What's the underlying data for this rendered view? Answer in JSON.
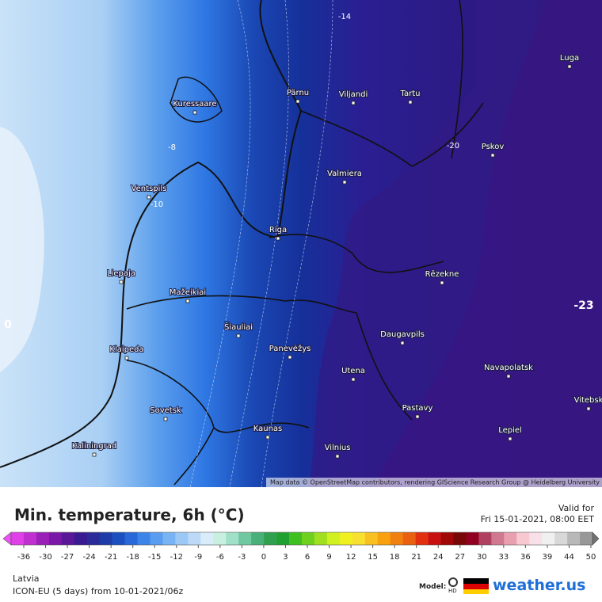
{
  "map": {
    "cities": [
      "Luga",
      "Pärnu",
      "Viljandi",
      "Tartu",
      "Kuressaare",
      "Pskov",
      "Valmiera",
      "Ventspils",
      "Riga",
      "Liepaja",
      "Rēzekne",
      "Mažeikiai",
      "Šiauliai",
      "Klaipeda",
      "Panevėžys",
      "Daugavpils",
      "Utena",
      "Navapolatsk",
      "Sovetsk",
      "Pastavy",
      "Vitebsk",
      "Kaunas",
      "Lepiel",
      "Kaliningrad",
      "Vilnius"
    ],
    "contour_labels": [
      "-14",
      "-8",
      "-10",
      "-20",
      "-23",
      "0"
    ],
    "attribution": "Map data © OpenStreetMap contributors, rendering GIScience Research Group @ Heidelberg University"
  },
  "legend": {
    "title": "Min. temperature, 6h (°C)",
    "valid_label": "Valid for",
    "valid_time": "Fri 15-01-2021, 08:00 EET",
    "ticks": [
      -36,
      -30,
      -27,
      -24,
      -21,
      -18,
      -15,
      -12,
      -9,
      -6,
      -3,
      0,
      3,
      6,
      9,
      12,
      15,
      18,
      21,
      24,
      27,
      30,
      33,
      36,
      39,
      44,
      50
    ]
  },
  "footer": {
    "region": "Latvia",
    "model_run": "ICON-EU (5 days) from 10-01-2021/06z",
    "model_label": "Model:",
    "model_badge": "HD",
    "brand": "weather.us"
  }
}
